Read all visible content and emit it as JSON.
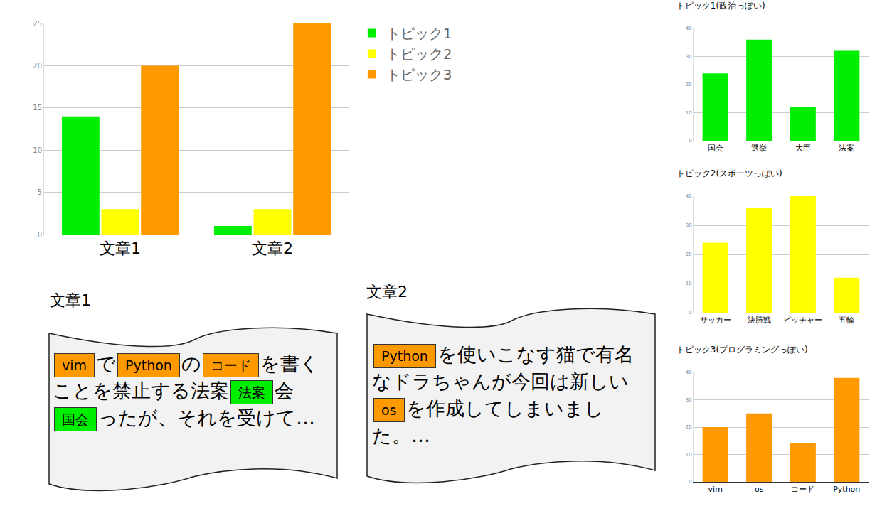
{
  "chart_data": [
    {
      "type": "bar",
      "categories": [
        "文章1",
        "文章2"
      ],
      "series": [
        {
          "name": "トピック1",
          "color": "#00ee00",
          "values": [
            14,
            1
          ]
        },
        {
          "name": "トピック2",
          "color": "#ffff00",
          "values": [
            3,
            3
          ]
        },
        {
          "name": "トピック3",
          "color": "#ff9900",
          "values": [
            20,
            25
          ]
        }
      ],
      "ylim": [
        0,
        25
      ],
      "yticks": [
        0,
        5,
        10,
        15,
        20,
        25
      ],
      "grid": true,
      "legend": "right"
    },
    {
      "type": "bar",
      "title": "トピック1(政治っぽい)",
      "categories": [
        "国会",
        "選挙",
        "大臣",
        "法案"
      ],
      "values": [
        24,
        36,
        12,
        32
      ],
      "color": "#00ee00",
      "ylim": [
        0,
        40
      ],
      "yticks": [
        0,
        10,
        20,
        30,
        40
      ],
      "grid": true
    },
    {
      "type": "bar",
      "title": "トピック2(スポーツっぽい)",
      "categories": [
        "サッカー",
        "決勝戦",
        "ピッチャー",
        "五輪"
      ],
      "values": [
        24,
        36,
        40,
        12
      ],
      "color": "#ffff00",
      "ylim": [
        0,
        40
      ],
      "yticks": [
        0,
        10,
        20,
        30,
        40
      ],
      "grid": true
    },
    {
      "type": "bar",
      "title": "トピック3(プログラミングっぽい)",
      "categories": [
        "vim",
        "os",
        "コード",
        "Python"
      ],
      "values": [
        20,
        25,
        14,
        38
      ],
      "color": "#ff9900",
      "ylim": [
        0,
        40
      ],
      "yticks": [
        0,
        10,
        20,
        30,
        40
      ],
      "grid": true
    }
  ],
  "documents": [
    {
      "label": "文章1",
      "segments": [
        {
          "text": "vim",
          "topic": "トピック3"
        },
        {
          "text": "で"
        },
        {
          "text": "Python",
          "topic": "トピック3"
        },
        {
          "text": "の"
        },
        {
          "text": "コード",
          "topic": "トピック3"
        },
        {
          "text": "を書くことを禁止する法案"
        },
        {
          "text": "法案",
          "topic": "トピック1"
        },
        {
          "text": "会"
        },
        {
          "text": "国会",
          "topic": "トピック1"
        },
        {
          "text": "ったが、それを受けて…"
        }
      ]
    },
    {
      "label": "文章2",
      "segments": [
        {
          "text": "Python",
          "topic": "トピック3"
        },
        {
          "text": "を使いこなす猫で有名なドラちゃんが今回は新しい"
        },
        {
          "text": "os",
          "topic": "トピック3"
        },
        {
          "text": "を作成してしまいました。…"
        }
      ]
    }
  ]
}
